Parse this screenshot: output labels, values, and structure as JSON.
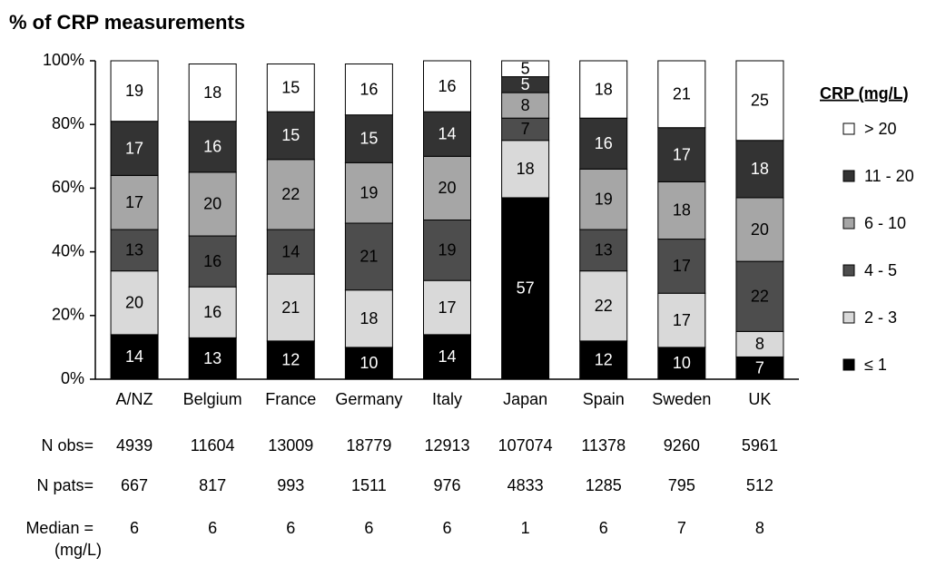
{
  "chart_data": {
    "type": "stacked_bar",
    "title": "% of CRP measurements",
    "categories": [
      "A/NZ",
      "Belgium",
      "France",
      "Germany",
      "Italy",
      "Japan",
      "Spain",
      "Sweden",
      "UK"
    ],
    "series": [
      {
        "name": "≤ 1",
        "color": "#000000",
        "values": [
          14,
          13,
          12,
          10,
          14,
          57,
          12,
          10,
          7
        ]
      },
      {
        "name": "2 - 3",
        "color": "#d9d9d9",
        "values": [
          20,
          16,
          21,
          18,
          17,
          18,
          22,
          17,
          8
        ]
      },
      {
        "name": "4 - 5",
        "color": "#4d4d4d",
        "values": [
          13,
          16,
          14,
          21,
          19,
          7,
          13,
          17,
          22
        ]
      },
      {
        "name": "6 - 10",
        "color": "#a6a6a6",
        "values": [
          17,
          20,
          22,
          19,
          20,
          8,
          19,
          18,
          20
        ]
      },
      {
        "name": "11 - 20",
        "color": "#333333",
        "values": [
          17,
          16,
          15,
          15,
          14,
          5,
          16,
          17,
          18
        ]
      },
      {
        "name": "> 20",
        "color": "#ffffff",
        "values": [
          19,
          18,
          15,
          16,
          16,
          5,
          18,
          21,
          25
        ]
      }
    ],
    "ylim": [
      0,
      100
    ],
    "yticks": [
      {
        "value": 0,
        "label": "0%"
      },
      {
        "value": 20,
        "label": "20%"
      },
      {
        "value": 40,
        "label": "40%"
      },
      {
        "value": 60,
        "label": "60%"
      },
      {
        "value": 80,
        "label": "80%"
      },
      {
        "value": 100,
        "label": "100%"
      }
    ],
    "legend_title": "CRP (mg/L)",
    "legend": "right",
    "table": [
      {
        "label": "N obs=",
        "values": [
          4939,
          11604,
          13009,
          18779,
          12913,
          107074,
          11378,
          9260,
          5961
        ]
      },
      {
        "label": "N pats=",
        "values": [
          667,
          817,
          993,
          1511,
          976,
          4833,
          1285,
          795,
          512
        ]
      },
      {
        "label": "Median =",
        "unit": "(mg/L)",
        "values": [
          6,
          6,
          6,
          6,
          6,
          1,
          6,
          7,
          8
        ]
      }
    ]
  }
}
